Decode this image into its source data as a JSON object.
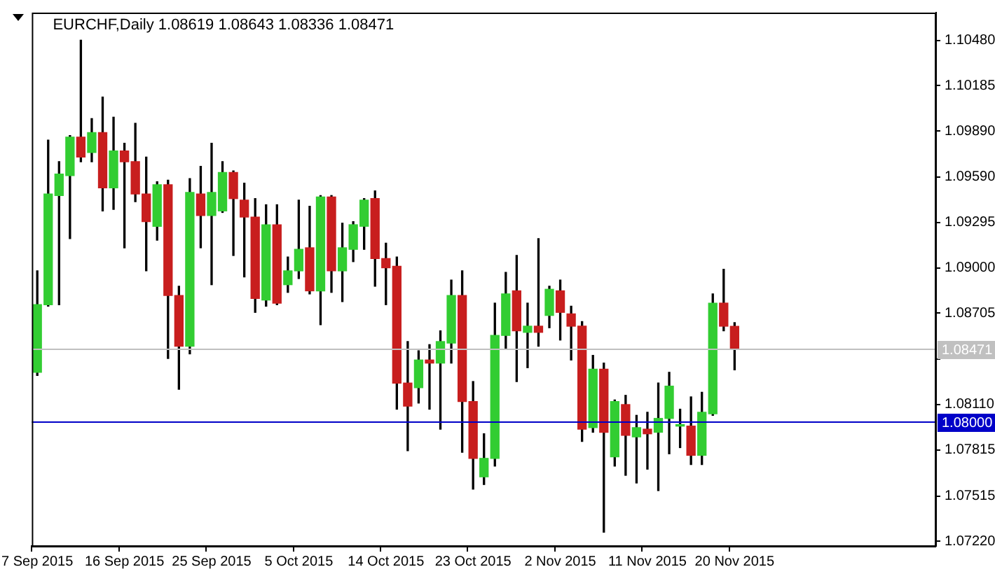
{
  "chart_data": {
    "type": "candlestick",
    "title": "EURCHF,Daily 1.08619 1.08643 1.08336 1.08471",
    "categories": [
      "7 Sep 2015",
      null,
      null,
      null,
      null,
      null,
      null,
      null,
      "16 Sep 2015",
      null,
      null,
      null,
      null,
      null,
      null,
      null,
      "25 Sep 2015",
      null,
      null,
      null,
      null,
      null,
      null,
      null,
      "5 Oct 2015",
      null,
      null,
      null,
      null,
      null,
      null,
      null,
      "14 Oct 2015",
      null,
      null,
      null,
      null,
      null,
      null,
      null,
      "23 Oct 2015",
      null,
      null,
      null,
      null,
      null,
      null,
      null,
      "2 Nov 2015",
      null,
      null,
      null,
      null,
      null,
      null,
      null,
      "11 Nov 2015",
      null,
      null,
      null,
      null,
      null,
      null,
      null,
      "20 Nov 2015",
      null,
      null,
      null,
      null,
      null,
      null,
      null,
      null,
      null,
      null,
      null,
      null,
      null,
      null,
      null,
      null,
      null,
      null
    ],
    "ohlc": [
      [
        1.0832,
        1.0898,
        1.083,
        1.0876
      ],
      [
        1.0876,
        1.0983,
        1.0875,
        1.0948
      ],
      [
        1.0947,
        1.0969,
        1.0876,
        1.0961
      ],
      [
        1.096,
        1.0986,
        1.0919,
        1.0985
      ],
      [
        1.0985,
        1.1048,
        1.0969,
        1.0972
      ],
      [
        1.0975,
        1.0997,
        1.0969,
        1.0988
      ],
      [
        1.0988,
        1.1011,
        1.0937,
        1.0952
      ],
      [
        1.0952,
        1.0998,
        1.0938,
        1.0976
      ],
      [
        1.0976,
        1.0981,
        1.0913,
        1.0969
      ],
      [
        1.0969,
        1.0994,
        1.0943,
        1.0948
      ],
      [
        1.0948,
        1.0972,
        1.0898,
        1.093
      ],
      [
        1.0927,
        1.0956,
        1.0918,
        1.0954
      ],
      [
        1.0954,
        1.0957,
        1.0841,
        1.0882
      ],
      [
        1.0882,
        1.0888,
        1.0821,
        1.0849
      ],
      [
        1.0849,
        1.0958,
        1.0844,
        1.0949
      ],
      [
        1.0948,
        1.0966,
        1.0913,
        1.0934
      ],
      [
        1.0934,
        1.0981,
        1.0889,
        1.0949
      ],
      [
        1.0937,
        1.0969,
        1.0936,
        1.0962
      ],
      [
        1.0962,
        1.0963,
        1.0908,
        1.0945
      ],
      [
        1.0944,
        1.0955,
        1.0894,
        1.0933
      ],
      [
        1.0933,
        1.0945,
        1.0871,
        1.088
      ],
      [
        1.0879,
        1.0941,
        1.0875,
        1.0928
      ],
      [
        1.0928,
        1.0941,
        1.0876,
        1.0877
      ],
      [
        1.0889,
        1.0907,
        1.0884,
        1.0898
      ],
      [
        1.0898,
        1.0944,
        1.0893,
        1.0912
      ],
      [
        1.0913,
        1.094,
        1.0883,
        1.0885
      ],
      [
        1.0885,
        1.0947,
        1.0863,
        1.0946
      ],
      [
        1.0946,
        1.0947,
        1.0884,
        1.0898
      ],
      [
        1.0898,
        1.0929,
        1.0878,
        1.0913
      ],
      [
        1.0912,
        1.093,
        1.0904,
        1.0928
      ],
      [
        1.0927,
        1.0945,
        1.0912,
        1.0944
      ],
      [
        1.0945,
        1.095,
        1.0888,
        1.0906
      ],
      [
        1.0906,
        1.0916,
        1.0876,
        1.09
      ],
      [
        1.0901,
        1.0907,
        1.0808,
        1.0825
      ],
      [
        1.0825,
        1.0852,
        1.0781,
        1.081
      ],
      [
        1.0822,
        1.0846,
        1.0812,
        1.084
      ],
      [
        1.084,
        1.085,
        1.0808,
        1.0838
      ],
      [
        1.0838,
        1.0859,
        1.0795,
        1.0852
      ],
      [
        1.0851,
        1.0892,
        1.0838,
        1.0882
      ],
      [
        1.0882,
        1.0898,
        1.078,
        1.0813
      ],
      [
        1.0813,
        1.0826,
        1.0756,
        1.0776
      ],
      [
        1.0764,
        1.0792,
        1.0759,
        1.0776
      ],
      [
        1.0776,
        1.0877,
        1.0771,
        1.0856
      ],
      [
        1.0856,
        1.0897,
        1.0847,
        1.0883
      ],
      [
        1.0885,
        1.0908,
        1.0826,
        1.0859
      ],
      [
        1.0858,
        1.0877,
        1.0835,
        1.0862
      ],
      [
        1.0862,
        1.0919,
        1.0849,
        1.0858
      ],
      [
        1.0869,
        1.0888,
        1.0861,
        1.0886
      ],
      [
        1.0885,
        1.0892,
        1.0853,
        1.0871
      ],
      [
        1.087,
        1.0875,
        1.084,
        1.0862
      ],
      [
        1.0862,
        1.0865,
        1.0787,
        1.0795
      ],
      [
        1.0796,
        1.0843,
        1.0793,
        1.0834
      ],
      [
        1.0834,
        1.0838,
        1.0728,
        1.0793
      ],
      [
        1.0777,
        1.0814,
        1.0771,
        1.0813
      ],
      [
        1.0811,
        1.0817,
        1.0765,
        1.0791
      ],
      [
        1.079,
        1.0804,
        1.076,
        1.0796
      ],
      [
        1.0795,
        1.0806,
        1.0769,
        1.0792
      ],
      [
        1.0793,
        1.0825,
        1.0755,
        1.0802
      ],
      [
        1.0802,
        1.0832,
        1.0779,
        1.0823
      ],
      [
        1.0798,
        1.0808,
        1.0783,
        1.0797
      ],
      [
        1.0797,
        1.0816,
        1.0772,
        1.0778
      ],
      [
        1.0778,
        1.0819,
        1.0772,
        1.0806
      ],
      [
        1.0805,
        1.0883,
        1.0804,
        1.0877
      ],
      [
        1.0877,
        1.0899,
        1.0859,
        1.0862
      ],
      [
        1.08619,
        1.08643,
        1.08336,
        1.08471
      ],
      null,
      null,
      null,
      null,
      null,
      null,
      null,
      null,
      null,
      null,
      null,
      null,
      null,
      null,
      null,
      null,
      null,
      null
    ],
    "colors": [
      "#32cd32",
      "#32cd32",
      "#32cd32",
      "#32cd32",
      "#c81e1e",
      "#32cd32",
      "#c81e1e",
      "#32cd32",
      "#c81e1e",
      "#c81e1e",
      "#c81e1e",
      "#32cd32",
      "#c81e1e",
      "#c81e1e",
      "#32cd32",
      "#c81e1e",
      "#32cd32",
      "#32cd32",
      "#c81e1e",
      "#c81e1e",
      "#c81e1e",
      "#32cd32",
      "#c81e1e",
      "#32cd32",
      "#32cd32",
      "#c81e1e",
      "#32cd32",
      "#c81e1e",
      "#32cd32",
      "#32cd32",
      "#32cd32",
      "#c81e1e",
      "#c81e1e",
      "#c81e1e",
      "#c81e1e",
      "#32cd32",
      "#c81e1e",
      "#32cd32",
      "#32cd32",
      "#c81e1e",
      "#c81e1e",
      "#32cd32",
      "#32cd32",
      "#32cd32",
      "#c81e1e",
      "#32cd32",
      "#c81e1e",
      "#32cd32",
      "#c81e1e",
      "#c81e1e",
      "#c81e1e",
      "#32cd32",
      "#c81e1e",
      "#32cd32",
      "#c81e1e",
      "#32cd32",
      "#c81e1e",
      "#32cd32",
      "#32cd32",
      "#32cd32",
      "#c81e1e",
      "#32cd32",
      "#32cd32",
      "#c81e1e",
      "#c81e1e",
      null,
      null,
      null,
      null,
      null,
      null,
      null,
      null,
      null,
      null,
      null,
      null,
      null,
      null,
      null,
      null,
      null,
      null
    ],
    "ylim": [
      1.0719,
      1.1066
    ],
    "yticks": [
      {
        "value": 1.1048,
        "label": "1.10480"
      },
      {
        "value": 1.10185,
        "label": "1.10185"
      },
      {
        "value": 1.0989,
        "label": "1.09890"
      },
      {
        "value": 1.0959,
        "label": "1.09590"
      },
      {
        "value": 1.09295,
        "label": "1.09295"
      },
      {
        "value": 1.09,
        "label": "1.09000"
      },
      {
        "value": 1.08705,
        "label": "1.08705"
      },
      {
        "value": 1.08405,
        "label": null
      },
      {
        "value": 1.0811,
        "label": "1.08110"
      },
      {
        "value": 1.07815,
        "label": "1.07815"
      },
      {
        "value": 1.07515,
        "label": "1.07515"
      },
      {
        "value": 1.0722,
        "label": "1.07220"
      }
    ],
    "ref_lines": [
      {
        "axis": "y",
        "value": 1.08471,
        "label": "1.08471",
        "color": "#c0c0c0"
      },
      {
        "axis": "y",
        "value": 1.08,
        "label": "1.08000",
        "color": "#0000c8"
      }
    ],
    "grid": false,
    "legend": false
  }
}
